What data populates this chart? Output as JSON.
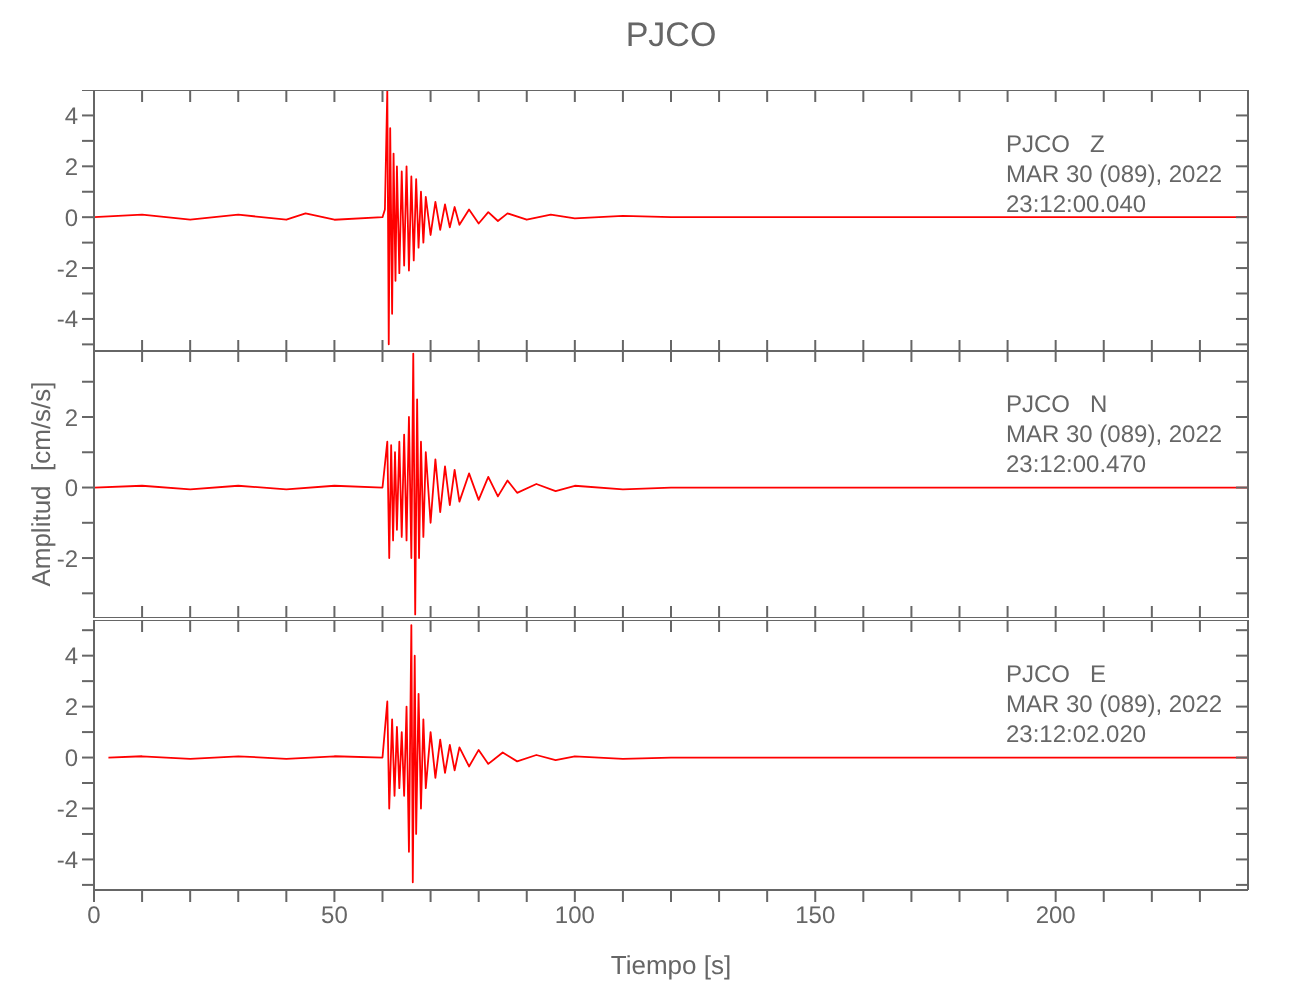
{
  "chart_data": [
    {
      "type": "line",
      "title": "PJCO",
      "annotations": [
        "PJCO   Z",
        "MAR 30 (089), 2022",
        "23:12:00.040"
      ],
      "xlim": [
        0,
        240
      ],
      "xticks": [
        0,
        {
          "value": 10,
          "label": null
        },
        {
          "value": 20,
          "label": null
        },
        {
          "value": 30,
          "label": null
        },
        {
          "value": 40,
          "label": null
        },
        50,
        {
          "value": 60,
          "label": null
        },
        {
          "value": 70,
          "label": null
        },
        {
          "value": 80,
          "label": null
        },
        {
          "value": 90,
          "label": null
        },
        100,
        {
          "value": 110,
          "label": null
        },
        {
          "value": 120,
          "label": null
        },
        {
          "value": 130,
          "label": null
        },
        {
          "value": 140,
          "label": null
        },
        150,
        {
          "value": 160,
          "label": null
        },
        {
          "value": 170,
          "label": null
        },
        {
          "value": 180,
          "label": null
        },
        {
          "value": 190,
          "label": null
        },
        200,
        {
          "value": 210,
          "label": null
        },
        {
          "value": 220,
          "label": null
        },
        {
          "value": 230,
          "label": null
        }
      ],
      "ylim": [
        -5.3,
        5.0
      ],
      "yticks": [
        {
          "value": -5,
          "label": null
        },
        -4,
        {
          "value": -3,
          "label": null
        },
        -2,
        {
          "value": -1,
          "label": null
        },
        0,
        {
          "value": 1,
          "label": null
        },
        2,
        {
          "value": 3,
          "label": null
        },
        4,
        {
          "value": 5,
          "label": null
        }
      ],
      "tick_labels": "y",
      "series": [
        {
          "color": "#ff0000",
          "x": [
            0,
            10,
            20,
            30,
            40,
            44,
            50,
            60,
            60.5,
            61,
            61.3,
            61.6,
            62,
            62.3,
            62.7,
            63,
            63.5,
            64,
            64.5,
            65,
            65.5,
            66,
            66.5,
            67,
            67.5,
            68,
            68.5,
            69,
            70,
            71,
            72,
            73,
            74,
            75,
            76,
            78,
            80,
            82,
            84,
            86,
            90,
            95,
            100,
            110,
            120,
            240
          ],
          "values": [
            0,
            0.1,
            -0.1,
            0.1,
            -0.1,
            0.15,
            -0.1,
            0,
            0.3,
            5.0,
            -5.0,
            3.5,
            -3.8,
            2.5,
            -2.5,
            2.0,
            -2.2,
            1.8,
            -1.9,
            2.0,
            -2.1,
            1.6,
            -1.7,
            1.5,
            -1.2,
            1.0,
            -1.0,
            0.8,
            -0.7,
            0.6,
            -0.5,
            0.5,
            -0.4,
            0.4,
            -0.3,
            0.3,
            -0.25,
            0.2,
            -0.15,
            0.15,
            -0.1,
            0.1,
            -0.05,
            0.05,
            0,
            0
          ]
        }
      ]
    },
    {
      "type": "line",
      "ylabel": "Amplitud  [cm/s/s]",
      "annotations": [
        "PJCO   N",
        "MAR 30 (089), 2022",
        "23:12:00.470"
      ],
      "xlim": [
        0,
        240
      ],
      "xticks": [
        0,
        {
          "value": 10,
          "label": null
        },
        {
          "value": 20,
          "label": null
        },
        {
          "value": 30,
          "label": null
        },
        {
          "value": 40,
          "label": null
        },
        50,
        {
          "value": 60,
          "label": null
        },
        {
          "value": 70,
          "label": null
        },
        {
          "value": 80,
          "label": null
        },
        {
          "value": 90,
          "label": null
        },
        100,
        {
          "value": 110,
          "label": null
        },
        {
          "value": 120,
          "label": null
        },
        {
          "value": 130,
          "label": null
        },
        {
          "value": 140,
          "label": null
        },
        150,
        {
          "value": 160,
          "label": null
        },
        {
          "value": 170,
          "label": null
        },
        {
          "value": 180,
          "label": null
        },
        {
          "value": 190,
          "label": null
        },
        200,
        {
          "value": 210,
          "label": null
        },
        {
          "value": 220,
          "label": null
        },
        {
          "value": 230,
          "label": null
        }
      ],
      "ylim": [
        -3.7,
        3.9
      ],
      "yticks": [
        {
          "value": -3,
          "label": null
        },
        -2,
        {
          "value": -1,
          "label": null
        },
        0,
        {
          "value": 1,
          "label": null
        },
        2,
        {
          "value": 3,
          "label": null
        }
      ],
      "tick_labels": "y",
      "series": [
        {
          "color": "#ff0000",
          "x": [
            0,
            10,
            20,
            30,
            40,
            50,
            60,
            61,
            61.4,
            61.8,
            62.2,
            62.6,
            63,
            63.5,
            64,
            64.5,
            65,
            65.5,
            66,
            66.4,
            66.8,
            67.2,
            67.6,
            68,
            68.5,
            69,
            70,
            71,
            72,
            73,
            74,
            75,
            76,
            78,
            80,
            82,
            84,
            86,
            88,
            92,
            96,
            100,
            110,
            120,
            240
          ],
          "values": [
            0,
            0.05,
            -0.05,
            0.05,
            -0.05,
            0.05,
            0,
            1.3,
            -2.0,
            1.2,
            -1.5,
            1.0,
            -1.2,
            1.3,
            -1.4,
            1.5,
            -1.5,
            2.0,
            -2.0,
            3.8,
            -3.6,
            2.5,
            -2.0,
            1.3,
            -1.4,
            1.0,
            -1.0,
            0.8,
            -0.7,
            0.6,
            -0.5,
            0.5,
            -0.4,
            0.4,
            -0.35,
            0.3,
            -0.25,
            0.2,
            -0.15,
            0.1,
            -0.1,
            0.05,
            -0.05,
            0,
            0
          ]
        }
      ]
    },
    {
      "type": "line",
      "xlabel": "Tiempo  [s]",
      "annotations": [
        "PJCO   E",
        "MAR 30 (089), 2022",
        "23:12:02.020"
      ],
      "xlim": [
        0,
        240
      ],
      "xticks": [
        0,
        {
          "value": 10,
          "label": null
        },
        {
          "value": 20,
          "label": null
        },
        {
          "value": 30,
          "label": null
        },
        {
          "value": 40,
          "label": null
        },
        50,
        {
          "value": 60,
          "label": null
        },
        {
          "value": 70,
          "label": null
        },
        {
          "value": 80,
          "label": null
        },
        {
          "value": 90,
          "label": null
        },
        100,
        {
          "value": 110,
          "label": null
        },
        {
          "value": 120,
          "label": null
        },
        {
          "value": 130,
          "label": null
        },
        {
          "value": 140,
          "label": null
        },
        150,
        {
          "value": 160,
          "label": null
        },
        {
          "value": 170,
          "label": null
        },
        {
          "value": 180,
          "label": null
        },
        {
          "value": 190,
          "label": null
        },
        200,
        {
          "value": 210,
          "label": null
        },
        {
          "value": 220,
          "label": null
        },
        {
          "value": 230,
          "label": null
        }
      ],
      "ylim": [
        -5.2,
        5.4
      ],
      "yticks": [
        {
          "value": -5,
          "label": null
        },
        -4,
        {
          "value": -3,
          "label": null
        },
        -2,
        {
          "value": -1,
          "label": null
        },
        0,
        {
          "value": 1,
          "label": null
        },
        2,
        {
          "value": 3,
          "label": null
        },
        4,
        {
          "value": 5,
          "label": null
        }
      ],
      "series": [
        {
          "color": "#ff0000",
          "x": [
            3,
            10,
            20,
            30,
            40,
            50,
            60,
            61,
            61.4,
            62,
            62.5,
            63,
            63.5,
            64,
            64.5,
            65,
            65.5,
            66,
            66.3,
            66.7,
            67,
            67.5,
            68,
            68.5,
            69,
            70,
            71,
            72,
            73,
            74,
            75,
            76,
            78,
            80,
            82,
            85,
            88,
            92,
            96,
            100,
            110,
            120,
            240
          ],
          "values": [
            0,
            0.05,
            -0.05,
            0.05,
            -0.05,
            0.05,
            0,
            2.2,
            -2.0,
            1.5,
            -1.5,
            1.2,
            -1.2,
            1.0,
            -1.5,
            2.0,
            -3.7,
            5.2,
            -4.9,
            4.0,
            -3.0,
            2.5,
            -2.0,
            1.5,
            -1.2,
            1.0,
            -0.8,
            0.7,
            -0.6,
            0.5,
            -0.5,
            0.4,
            -0.35,
            0.3,
            -0.25,
            0.2,
            -0.15,
            0.1,
            -0.1,
            0.05,
            -0.05,
            0,
            0
          ]
        }
      ]
    }
  ]
}
